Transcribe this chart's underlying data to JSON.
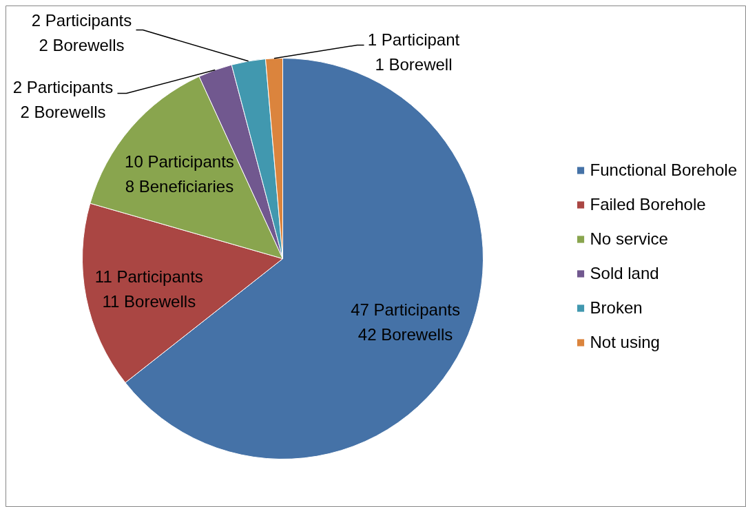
{
  "chart_data": {
    "type": "pie",
    "categories": [
      "Functional Borehole",
      "Failed Borehole",
      "No service",
      "Sold land",
      "Broken",
      "Not using"
    ],
    "values": [
      47,
      11,
      10,
      2,
      2,
      1
    ],
    "colors": [
      "#4572a7",
      "#aa4643",
      "#89a54e",
      "#71588f",
      "#4198af",
      "#db843d"
    ],
    "value_labels": [
      "47 Participants\n42 Borewells",
      "11 Participants\n11 Borewells",
      "10 Participants\n8 Beneficiaries",
      "2 Participants\n2 Borewells",
      "2 Participants\n2 Borewells",
      "1 Participant\n1 Borewell"
    ],
    "legend": "right"
  }
}
